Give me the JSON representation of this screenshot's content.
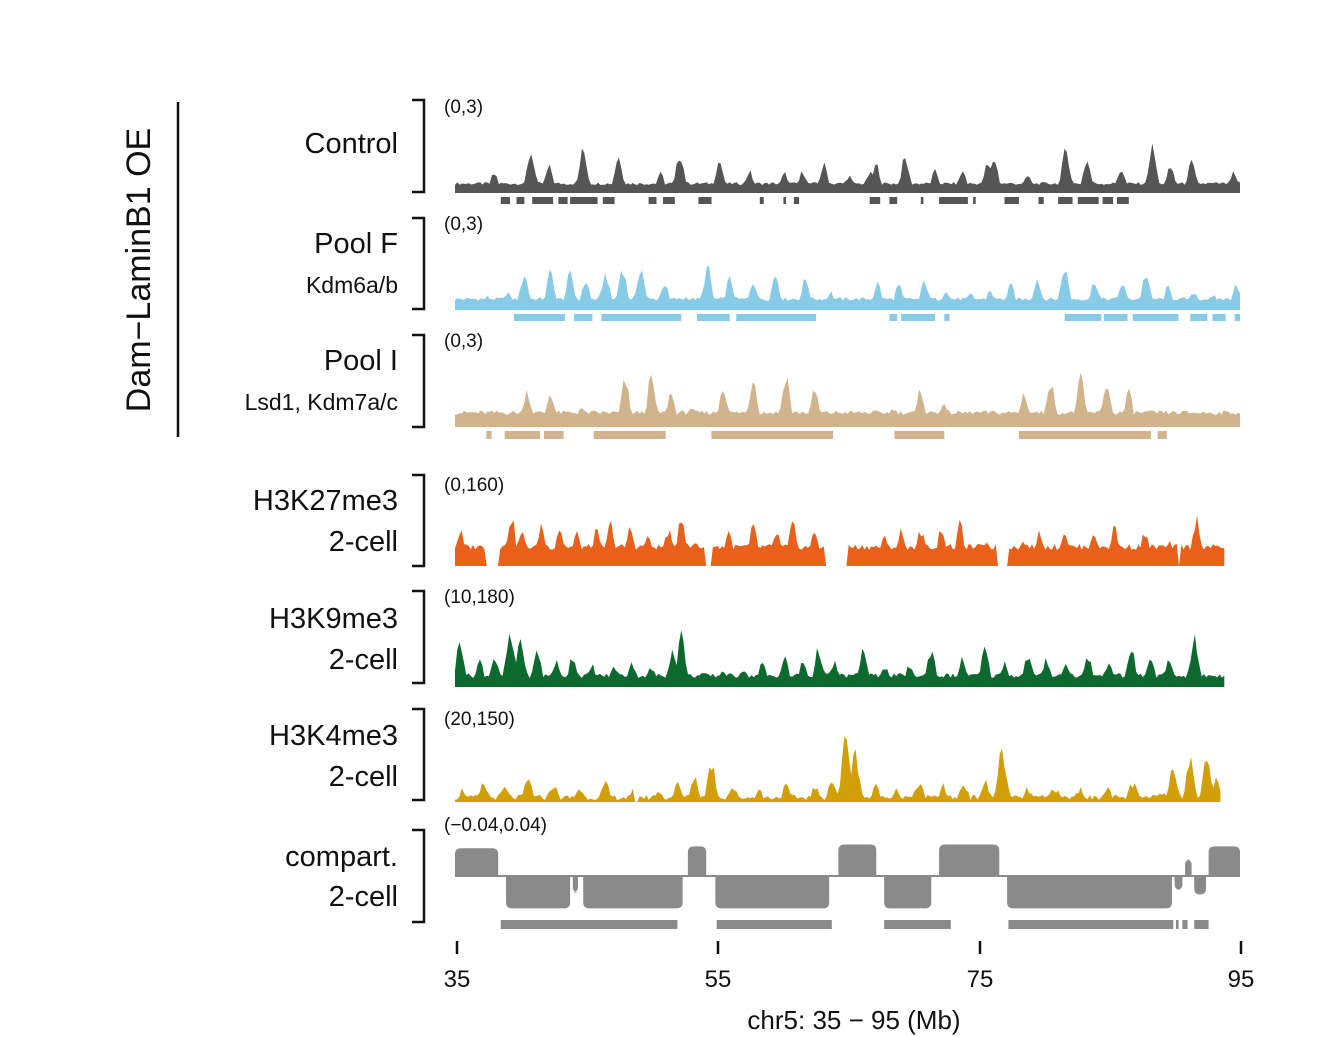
{
  "figure": {
    "group_label": "Dam−LaminB1 OE",
    "x_axis_label": "chr5: 35 − 95 (Mb)",
    "x_ticks": [
      "35",
      "55",
      "75",
      "95"
    ]
  },
  "chart_data": {
    "type": "area",
    "title": "",
    "xlabel": "chr5: 35 − 95 (Mb)",
    "xlim": [
      35,
      95
    ],
    "x_ticks": [
      35,
      55,
      75,
      95
    ],
    "series": [
      {
        "name": "Control",
        "sublabel": "",
        "range_label": "(0,3)",
        "ylim": [
          0,
          3
        ],
        "color": "#555555",
        "end_x": 95,
        "peaks": [
          [
            38,
            0.9
          ],
          [
            40.8,
            1.9
          ],
          [
            42.2,
            1.2
          ],
          [
            44.8,
            2.0
          ],
          [
            47.5,
            1.7
          ],
          [
            50.7,
            0.9
          ],
          [
            52.2,
            1.8
          ],
          [
            55.2,
            1.5
          ],
          [
            57.5,
            1.0
          ],
          [
            60.2,
            0.9
          ],
          [
            61.6,
            1.0
          ],
          [
            63.2,
            1.3
          ],
          [
            65.1,
            0.8
          ],
          [
            66.7,
            0.9
          ],
          [
            67.2,
            1.3
          ],
          [
            69.4,
            1.6
          ],
          [
            71.7,
            1.0
          ],
          [
            73.8,
            1.0
          ],
          [
            75.7,
            1.3
          ],
          [
            76.2,
            1.6
          ],
          [
            78.8,
            0.8
          ],
          [
            81.7,
            2.0
          ],
          [
            83.3,
            1.5
          ],
          [
            85.9,
            1.1
          ],
          [
            88.3,
            2.1
          ],
          [
            89.7,
            1.2
          ],
          [
            91.3,
            1.4
          ],
          [
            94.5,
            0.9
          ]
        ],
        "base": 0.45,
        "domains": [
          [
            38.5,
            39.2
          ],
          [
            39.7,
            40.3
          ],
          [
            40.9,
            42.5
          ],
          [
            42.9,
            43.6
          ],
          [
            43.8,
            45.9
          ],
          [
            46.3,
            47.2
          ],
          [
            49.8,
            50.4
          ],
          [
            50.9,
            51.8
          ],
          [
            53.6,
            54.6
          ],
          [
            58.3,
            58.6
          ],
          [
            60.1,
            60.3
          ],
          [
            60.9,
            61.3
          ],
          [
            66.7,
            67.5
          ],
          [
            68.2,
            68.8
          ],
          [
            70.6,
            70.8
          ],
          [
            72.0,
            74.2
          ],
          [
            74.6,
            74.8
          ],
          [
            77.0,
            78.1
          ],
          [
            79.6,
            80.0
          ],
          [
            81.1,
            82.2
          ],
          [
            82.6,
            84.2
          ],
          [
            84.5,
            85.3
          ],
          [
            85.6,
            86.5
          ]
        ]
      },
      {
        "name": "Pool F",
        "sublabel": "Kdm6a/b",
        "range_label": "(0,3)",
        "ylim": [
          0,
          3
        ],
        "color": "#87CBE6",
        "end_x": 95,
        "peaks": [
          [
            37.5,
            0.6
          ],
          [
            39.0,
            0.8
          ],
          [
            40.3,
            1.6
          ],
          [
            42.3,
            1.7
          ],
          [
            43.8,
            1.6
          ],
          [
            45.0,
            1.3
          ],
          [
            46.5,
            1.6
          ],
          [
            47.8,
            1.9
          ],
          [
            49.2,
            1.9
          ],
          [
            51.0,
            1.2
          ],
          [
            52.7,
            0.6
          ],
          [
            54.3,
            1.9
          ],
          [
            56.0,
            1.4
          ],
          [
            57.8,
            1.3
          ],
          [
            59.5,
            1.6
          ],
          [
            61.8,
            1.4
          ],
          [
            63.7,
            0.8
          ],
          [
            65.4,
            0.4
          ],
          [
            67.3,
            1.2
          ],
          [
            68.9,
            1.1
          ],
          [
            70.9,
            1.3
          ],
          [
            72.5,
            0.9
          ],
          [
            74.4,
            0.7
          ],
          [
            75.9,
            0.9
          ],
          [
            77.5,
            1.1
          ],
          [
            79.5,
            1.4
          ],
          [
            81.6,
            1.9
          ],
          [
            83.9,
            1.3
          ],
          [
            86.0,
            1.2
          ],
          [
            87.8,
            1.6
          ],
          [
            89.5,
            1.0
          ],
          [
            91.5,
            0.8
          ],
          [
            93.0,
            0.6
          ],
          [
            94.7,
            1.2
          ]
        ],
        "base": 0.5,
        "domains": [
          [
            39.5,
            43.4
          ],
          [
            44.1,
            45.5
          ],
          [
            46.2,
            52.3
          ],
          [
            53.5,
            56.0
          ],
          [
            56.5,
            62.6
          ],
          [
            68.2,
            68.8
          ],
          [
            69.1,
            71.7
          ],
          [
            72.4,
            72.8
          ],
          [
            81.6,
            84.4
          ],
          [
            84.6,
            86.4
          ],
          [
            86.8,
            90.3
          ],
          [
            91.2,
            92.5
          ],
          [
            92.9,
            93.9
          ],
          [
            94.6,
            95.0
          ]
        ]
      },
      {
        "name": "Pool I",
        "sublabel": "Lsd1, Kdm7a/c",
        "range_label": "(0,3)",
        "ylim": [
          0,
          3
        ],
        "color": "#D1B38C",
        "end_x": 95,
        "peaks": [
          [
            37.2,
            0.5
          ],
          [
            40.5,
            1.5
          ],
          [
            42.3,
            1.4
          ],
          [
            44.6,
            0.8
          ],
          [
            48.0,
            1.9
          ],
          [
            50.0,
            2.0
          ],
          [
            51.5,
            1.4
          ],
          [
            53.0,
            0.8
          ],
          [
            55.5,
            1.7
          ],
          [
            57.8,
            2.0
          ],
          [
            60.3,
            2.1
          ],
          [
            62.5,
            1.5
          ],
          [
            64.3,
            0.6
          ],
          [
            66.6,
            0.4
          ],
          [
            68.5,
            0.8
          ],
          [
            70.6,
            1.5
          ],
          [
            72.3,
            1.0
          ],
          [
            74.0,
            0.6
          ],
          [
            76.4,
            0.5
          ],
          [
            78.5,
            1.4
          ],
          [
            80.5,
            1.9
          ],
          [
            82.8,
            2.0
          ],
          [
            84.8,
            1.8
          ],
          [
            86.5,
            1.4
          ],
          [
            88.6,
            0.6
          ],
          [
            91.0,
            0.4
          ],
          [
            93.5,
            0.5
          ]
        ],
        "base": 0.6,
        "domains": [
          [
            37.4,
            37.8
          ],
          [
            38.8,
            41.5
          ],
          [
            41.8,
            43.3
          ],
          [
            45.6,
            51.1
          ],
          [
            54.6,
            63.9
          ],
          [
            68.6,
            72.4
          ],
          [
            78.1,
            88.2
          ],
          [
            88.7,
            89.4
          ]
        ]
      },
      {
        "name": "H3K27me3",
        "sublabel": "2-cell",
        "range_label": "(0,160)",
        "ylim": [
          0,
          160
        ],
        "color": "#E9601B",
        "end_x": 93.8,
        "peaks": [
          [
            35.4,
            80
          ],
          [
            36.7,
            50
          ],
          [
            39.3,
            115
          ],
          [
            40.1,
            78
          ],
          [
            41.6,
            95
          ],
          [
            43.0,
            90
          ],
          [
            44.3,
            75
          ],
          [
            45.8,
            80
          ],
          [
            46.9,
            98
          ],
          [
            48.4,
            88
          ],
          [
            49.7,
            68
          ],
          [
            51.3,
            82
          ],
          [
            52.3,
            120
          ],
          [
            53.4,
            55
          ],
          [
            54.4,
            30
          ],
          [
            55.9,
            80
          ],
          [
            57.8,
            90
          ],
          [
            59.6,
            78
          ],
          [
            60.8,
            96
          ],
          [
            62.5,
            80
          ],
          [
            64.1,
            72
          ],
          [
            66.2,
            40
          ],
          [
            67.8,
            65
          ],
          [
            69.1,
            80
          ],
          [
            70.6,
            82
          ],
          [
            72.2,
            90
          ],
          [
            73.6,
            95
          ],
          [
            75.6,
            60
          ],
          [
            77.2,
            55
          ],
          [
            78.5,
            60
          ],
          [
            79.7,
            80
          ],
          [
            81.6,
            82
          ],
          [
            83.8,
            80
          ],
          [
            85.4,
            90
          ],
          [
            87.7,
            78
          ],
          [
            89.7,
            52
          ],
          [
            90.8,
            42
          ],
          [
            91.7,
            110
          ],
          [
            92.9,
            20
          ]
        ],
        "base": 45,
        "gaps": [
          [
            37.4,
            38.4
          ],
          [
            54.1,
            54.7
          ],
          [
            63.2,
            65.0
          ],
          [
            76.5,
            77.2
          ],
          [
            90.2,
            90.4
          ]
        ]
      },
      {
        "name": "H3K9me3",
        "sublabel": "2-cell",
        "range_label": "(10,180)",
        "ylim": [
          10,
          180
        ],
        "color": "#0D6A2E",
        "end_x": 93.8,
        "peaks": [
          [
            35.4,
            120
          ],
          [
            36.9,
            72
          ],
          [
            38.0,
            80
          ],
          [
            39.2,
            130
          ],
          [
            40.0,
            125
          ],
          [
            41.3,
            95
          ],
          [
            42.7,
            70
          ],
          [
            44.0,
            85
          ],
          [
            45.5,
            60
          ],
          [
            47.2,
            60
          ],
          [
            48.5,
            70
          ],
          [
            50.0,
            55
          ],
          [
            51.6,
            95
          ],
          [
            52.3,
            135
          ],
          [
            53.9,
            42
          ],
          [
            55.5,
            52
          ],
          [
            57.0,
            55
          ],
          [
            58.5,
            65
          ],
          [
            60.2,
            78
          ],
          [
            61.6,
            70
          ],
          [
            62.8,
            100
          ],
          [
            64.0,
            68
          ],
          [
            66.2,
            100
          ],
          [
            67.8,
            62
          ],
          [
            69.7,
            60
          ],
          [
            71.4,
            100
          ],
          [
            73.8,
            75
          ],
          [
            75.5,
            98
          ],
          [
            77.0,
            70
          ],
          [
            78.8,
            85
          ],
          [
            80.2,
            78
          ],
          [
            81.7,
            70
          ],
          [
            83.4,
            82
          ],
          [
            85.0,
            75
          ],
          [
            86.7,
            100
          ],
          [
            88.2,
            78
          ],
          [
            89.6,
            72
          ],
          [
            91.5,
            125
          ],
          [
            92.8,
            20
          ]
        ],
        "base": 38,
        "gaps": []
      },
      {
        "name": "H3K4me3",
        "sublabel": "2-cell",
        "range_label": "(20,150)",
        "ylim": [
          20,
          150
        ],
        "color": "#D29F08",
        "end_x": 93.5,
        "peaks": [
          [
            35.6,
            40
          ],
          [
            37.2,
            48
          ],
          [
            38.8,
            42
          ],
          [
            40.6,
            55
          ],
          [
            42.5,
            48
          ],
          [
            44.5,
            42
          ],
          [
            46.5,
            48
          ],
          [
            48.8,
            42
          ],
          [
            50.5,
            38
          ],
          [
            52.0,
            48
          ],
          [
            53.3,
            60
          ],
          [
            54.6,
            82
          ],
          [
            56.2,
            44
          ],
          [
            58.2,
            40
          ],
          [
            60.3,
            45
          ],
          [
            62.5,
            42
          ],
          [
            63.8,
            55
          ],
          [
            64.9,
            130
          ],
          [
            65.6,
            98
          ],
          [
            67.2,
            45
          ],
          [
            68.7,
            42
          ],
          [
            70.5,
            52
          ],
          [
            72.3,
            45
          ],
          [
            73.9,
            50
          ],
          [
            75.5,
            52
          ],
          [
            76.8,
            104
          ],
          [
            78.8,
            40
          ],
          [
            80.8,
            45
          ],
          [
            82.8,
            42
          ],
          [
            84.8,
            45
          ],
          [
            86.8,
            50
          ],
          [
            88.9,
            40
          ],
          [
            89.9,
            80
          ],
          [
            91.2,
            85
          ],
          [
            92.5,
            92
          ],
          [
            93.2,
            60
          ]
        ],
        "base": 28,
        "gaps": [
          [
            48.6,
            49.1
          ]
        ]
      }
    ],
    "compartment": {
      "name": "compart.",
      "sublabel": "2-cell",
      "range_label": "(−0.04,0.04)",
      "ylim": [
        -0.04,
        0.04
      ],
      "color": "#8A8A8A",
      "end_x": 95,
      "segments": [
        [
          35,
          38.3,
          0.03
        ],
        [
          38.9,
          43.8,
          -0.035
        ],
        [
          44.0,
          44.4,
          -0.018
        ],
        [
          44.8,
          52.4,
          -0.035
        ],
        [
          52.8,
          54.2,
          0.032
        ],
        [
          54.9,
          63.6,
          -0.035
        ],
        [
          64.3,
          67.2,
          0.034
        ],
        [
          67.8,
          71.4,
          -0.035
        ],
        [
          72.0,
          76.6,
          0.034
        ],
        [
          77.2,
          89.8,
          -0.035
        ],
        [
          90.0,
          90.6,
          -0.015
        ],
        [
          90.8,
          91.3,
          0.018
        ],
        [
          91.5,
          92.4,
          -0.02
        ],
        [
          92.6,
          95,
          0.032
        ]
      ],
      "domains": [
        [
          38.5,
          52.0
        ],
        [
          55.0,
          63.8
        ],
        [
          67.8,
          72.9
        ],
        [
          77.3,
          89.9
        ],
        [
          90.1,
          90.3
        ],
        [
          90.6,
          91.0
        ],
        [
          91.5,
          92.6
        ]
      ]
    }
  }
}
